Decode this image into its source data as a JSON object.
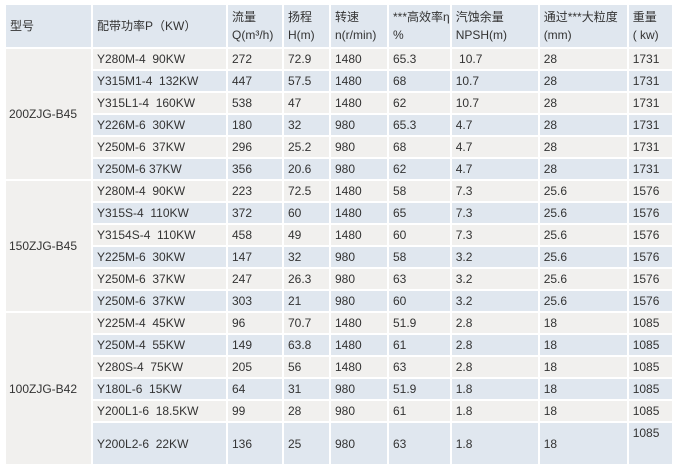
{
  "headers": [
    {
      "l1": "型号",
      "l2": ""
    },
    {
      "l1": "配带功率P（KW）",
      "l2": ""
    },
    {
      "l1": "流量",
      "l2": "Q(m³/h)"
    },
    {
      "l1": "扬程",
      "l2": "H(m)"
    },
    {
      "l1": "转速",
      "l2": "n(r/min)"
    },
    {
      "l1": "***高效率η",
      "l2": "%"
    },
    {
      "l1": "汽蚀余量",
      "l2": "NPSH(m)"
    },
    {
      "l1": "通过***大粒度",
      "l2": "(mm)"
    },
    {
      "l1": "重量",
      "l2": "( kw)"
    }
  ],
  "groups": [
    {
      "model": "200ZJG-B45",
      "rows": [
        [
          "Y280M-4  90KW",
          "272",
          "72.9",
          "1480",
          "65.3",
          " 10.7",
          "28",
          "1731"
        ],
        [
          "Y315M1-4  132KW",
          "447",
          "57.5",
          "1480",
          "68",
          "10.7",
          "28",
          "1731"
        ],
        [
          "Y315L1-4  160KW",
          "538",
          "47",
          "1480",
          "62",
          "10.7",
          "28",
          "1731"
        ],
        [
          "Y226M-6  30KW",
          "180",
          "32",
          "980",
          "65.3",
          "4.7",
          "28",
          "1731"
        ],
        [
          "Y250M-6  37KW",
          "296",
          "25.2",
          "980",
          "68",
          "4.7",
          "28",
          "1731"
        ],
        [
          "Y250M-6 37KW",
          "356",
          "20.6",
          "980",
          "62",
          "4.7",
          "28",
          "1731"
        ]
      ]
    },
    {
      "model": "150ZJG-B45",
      "rows": [
        [
          "Y280M-4  90KW",
          "223",
          "72.5",
          "1480",
          "58",
          "7.3",
          "25.6",
          "1576"
        ],
        [
          "Y315S-4  110KW",
          "372",
          "60",
          "1480",
          "65",
          "7.3",
          "25.6",
          "1576"
        ],
        [
          "Y3154S-4  110KW",
          "458",
          "49",
          "1480",
          "60",
          "7.3",
          "25.6",
          "1576"
        ],
        [
          "Y225M-6  30KW",
          "147",
          "32",
          "980",
          "58",
          "3.2",
          "25.6",
          "1576"
        ],
        [
          "Y250M-6  37KW",
          "247",
          "26.3",
          "980",
          "63",
          "3.2",
          "25.6",
          "1576"
        ],
        [
          "Y250M-6  37KW",
          "303",
          "21",
          "980",
          "60",
          "3.2",
          "25.6",
          "1576"
        ]
      ]
    },
    {
      "model": "100ZJG-B42",
      "rows": [
        [
          "Y225M-4  45KW",
          "96",
          "70.7",
          "1480",
          "51.9",
          "2.8",
          "18",
          "1085"
        ],
        [
          "Y250M-4  55KW",
          "149",
          "63.8",
          "1480",
          "61",
          "2.8",
          "18",
          "1085"
        ],
        [
          "Y280S-4  75KW",
          "205",
          "56",
          "1480",
          "63",
          "2.8",
          "18",
          "1085"
        ],
        [
          "Y180L-6  15KW",
          "64",
          "31",
          "980",
          "51.9",
          "1.8",
          "18",
          "1085"
        ],
        [
          "Y200L1-6  18.5KW",
          "99",
          "28",
          "980",
          "61",
          "1.8",
          "18",
          "1085"
        ],
        [
          "Y200L2-6  22KW",
          "136",
          "25",
          "980",
          "63",
          "1.8",
          "18",
          "1085"
        ]
      ]
    }
  ]
}
